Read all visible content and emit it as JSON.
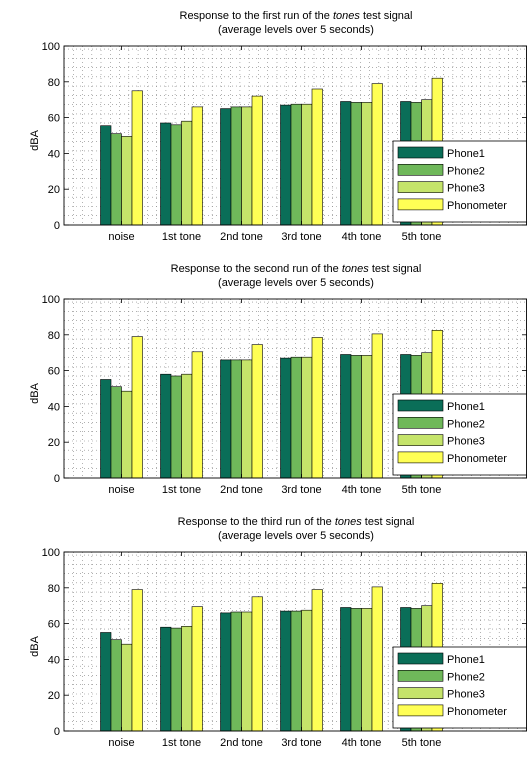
{
  "colors": {
    "Phone1": "#0a6e58",
    "Phone2": "#6fb85a",
    "Phone3": "#c5e46a",
    "Phonometer": "#ffff55",
    "grid": "#808080",
    "axis": "#000000"
  },
  "chart_data": [
    {
      "type": "bar",
      "title": [
        "Response to the first run of the ",
        "tones",
        " test signal"
      ],
      "subtitle": "(average levels over 5 seconds)",
      "xlabel": "",
      "ylabel": "dBA",
      "ylim": [
        0,
        100
      ],
      "yticks": [
        "0",
        "20",
        "40",
        "60",
        "80",
        "100"
      ],
      "grid": true,
      "legend_position": "bottom-right",
      "categories": [
        "noise",
        "1st tone",
        "2nd tone",
        "3rd tone",
        "4th tone",
        "5th tone"
      ],
      "series": [
        {
          "name": "Phone1",
          "values": [
            55.5,
            57,
            65,
            67,
            69,
            69
          ]
        },
        {
          "name": "Phone2",
          "values": [
            51,
            56,
            66,
            67.5,
            68.5,
            68.5
          ]
        },
        {
          "name": "Phone3",
          "values": [
            49.5,
            58,
            66,
            67.5,
            68.5,
            70
          ]
        },
        {
          "name": "Phonometer",
          "values": [
            75,
            66,
            72,
            76,
            79,
            82
          ]
        }
      ]
    },
    {
      "type": "bar",
      "title": [
        "Response to the second run of the ",
        "tones",
        " test signal"
      ],
      "subtitle": "(average levels over 5 seconds)",
      "xlabel": "",
      "ylabel": "dBA",
      "ylim": [
        0,
        100
      ],
      "yticks": [
        "0",
        "20",
        "40",
        "60",
        "80",
        "100"
      ],
      "grid": true,
      "legend_position": "bottom-right",
      "categories": [
        "noise",
        "1st tone",
        "2nd tone",
        "3rd tone",
        "4th tone",
        "5th tone"
      ],
      "series": [
        {
          "name": "Phone1",
          "values": [
            55,
            58,
            66,
            67,
            69,
            69
          ]
        },
        {
          "name": "Phone2",
          "values": [
            51,
            57,
            66,
            67.5,
            68.5,
            68.5
          ]
        },
        {
          "name": "Phone3",
          "values": [
            48.5,
            58,
            66,
            67.5,
            68.5,
            70
          ]
        },
        {
          "name": "Phonometer",
          "values": [
            79,
            70.5,
            74.5,
            78.5,
            80.5,
            82.5
          ]
        }
      ]
    },
    {
      "type": "bar",
      "title": [
        "Response to the third run of the ",
        "tones",
        " test signal"
      ],
      "subtitle": "(average levels over 5 seconds)",
      "xlabel": "",
      "ylabel": "dBA",
      "ylim": [
        0,
        100
      ],
      "yticks": [
        "0",
        "20",
        "40",
        "60",
        "80",
        "100"
      ],
      "grid": true,
      "legend_position": "bottom-right",
      "categories": [
        "noise",
        "1st tone",
        "2nd tone",
        "3rd tone",
        "4th tone",
        "5th tone"
      ],
      "series": [
        {
          "name": "Phone1",
          "values": [
            55,
            58,
            66,
            67,
            69,
            69
          ]
        },
        {
          "name": "Phone2",
          "values": [
            51,
            57.5,
            66.5,
            67,
            68.5,
            68.5
          ]
        },
        {
          "name": "Phone3",
          "values": [
            48.5,
            58.5,
            66.5,
            67.5,
            68.5,
            70
          ]
        },
        {
          "name": "Phonometer",
          "values": [
            79,
            69.5,
            75,
            79,
            80.5,
            82.5
          ]
        }
      ]
    }
  ]
}
